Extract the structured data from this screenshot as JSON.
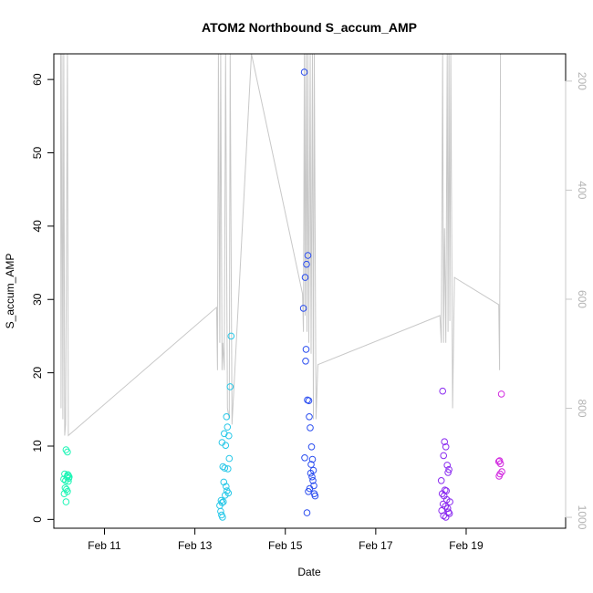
{
  "chart_data": {
    "type": "scatter",
    "title": "ATOM2 Northbound S_accum_AMP",
    "xlabel": "Date",
    "ylabel": "S_accum_AMP",
    "xlim": [
      9.88,
      21.2
    ],
    "ylim": [
      -1.2,
      63.5
    ],
    "x_ticks": [
      {
        "value": 11,
        "label": "Feb 11"
      },
      {
        "value": 13,
        "label": "Feb 13"
      },
      {
        "value": 15,
        "label": "Feb 15"
      },
      {
        "value": 17,
        "label": "Feb 17"
      },
      {
        "value": 19,
        "label": "Feb 19"
      }
    ],
    "y_ticks": [
      0,
      10,
      20,
      30,
      40,
      50,
      60
    ],
    "secondary_axis": {
      "label_color": "#b3b3b3",
      "line_color": "#c8c8c8",
      "ticks": [
        200,
        400,
        600,
        800,
        1000
      ],
      "range_top_to_bottom": [
        150,
        1020
      ],
      "note": "inverted depth-like scale on right"
    },
    "groups": [
      {
        "color": "#1ef5b6",
        "x": [
          10.15,
          10.18,
          10.12,
          10.2,
          10.22,
          10.1,
          10.14,
          10.17,
          10.19,
          10.21,
          10.13,
          10.16,
          10.11,
          10.18,
          10.2,
          10.15
        ],
        "y": [
          9.5,
          9.2,
          6.2,
          6.0,
          5.8,
          5.5,
          5.3,
          5.8,
          6.1,
          5.6,
          4.3,
          4.1,
          3.5,
          3.8,
          5.2,
          2.4
        ]
      },
      {
        "color": "#28c8e8",
        "x": [
          13.8,
          13.65,
          13.72,
          13.6,
          13.68,
          13.75,
          13.7,
          13.78,
          13.62,
          13.66,
          13.73,
          13.76,
          13.64,
          13.69,
          13.71,
          13.74,
          13.58,
          13.6,
          13.63,
          13.55,
          13.57,
          13.59,
          13.61,
          13.67
        ],
        "y": [
          25.0,
          11.7,
          12.6,
          10.5,
          10.1,
          11.4,
          14.0,
          18.1,
          7.2,
          7.0,
          6.9,
          8.3,
          5.1,
          4.5,
          3.9,
          3.6,
          2.6,
          2.3,
          2.4,
          1.9,
          1.1,
          0.6,
          0.3,
          3.3
        ]
      },
      {
        "color": "#2a4df0",
        "x": [
          15.42,
          15.5,
          15.47,
          15.44,
          15.4,
          15.46,
          15.45,
          15.49,
          15.52,
          15.53,
          15.55,
          15.58,
          15.6,
          15.57,
          15.62,
          15.56,
          15.59,
          15.61,
          15.63,
          15.54,
          15.51,
          15.43,
          15.48,
          15.64,
          15.66
        ],
        "y": [
          61.0,
          36.0,
          34.8,
          33.0,
          28.8,
          23.2,
          21.6,
          16.3,
          16.2,
          14.0,
          12.5,
          9.9,
          8.2,
          7.5,
          6.7,
          6.3,
          5.8,
          5.3,
          4.6,
          4.2,
          3.8,
          8.4,
          0.9,
          3.5,
          3.2
        ]
      },
      {
        "color": "#8a2af0",
        "x": [
          18.48,
          18.52,
          18.55,
          18.5,
          18.58,
          18.62,
          18.6,
          18.45,
          18.53,
          18.56,
          18.47,
          18.51,
          18.57,
          18.64,
          18.49,
          18.54,
          18.59,
          18.46,
          18.61,
          18.63,
          18.5,
          18.55
        ],
        "y": [
          17.5,
          10.6,
          9.9,
          8.7,
          7.4,
          6.8,
          6.4,
          5.3,
          4.0,
          3.9,
          3.5,
          3.2,
          2.7,
          2.4,
          2.1,
          1.8,
          1.5,
          1.2,
          1.0,
          0.8,
          0.5,
          0.3
        ]
      },
      {
        "color": "#d22ae0",
        "x": [
          19.78,
          19.74,
          19.76,
          19.72,
          19.79,
          19.75,
          19.73
        ],
        "y": [
          17.1,
          8.0,
          7.6,
          7.9,
          6.5,
          6.2,
          5.9
        ]
      }
    ],
    "series": [
      {
        "name": "secondary-trace",
        "color": "#c8c8c8",
        "points": [
          [
            10.03,
            150
          ],
          [
            10.04,
            800
          ],
          [
            10.06,
            150
          ],
          [
            10.08,
            820
          ],
          [
            10.1,
            150
          ],
          [
            10.12,
            850
          ],
          [
            10.14,
            830
          ],
          [
            10.18,
            150
          ],
          [
            10.2,
            850
          ],
          [
            13.48,
            615
          ],
          [
            13.5,
            730
          ],
          [
            13.52,
            150
          ],
          [
            13.55,
            680
          ],
          [
            13.57,
            150
          ],
          [
            13.6,
            730
          ],
          [
            13.62,
            680
          ],
          [
            13.65,
            730
          ],
          [
            13.68,
            150
          ],
          [
            13.72,
            800
          ],
          [
            13.76,
            820
          ],
          [
            13.78,
            150
          ],
          [
            13.82,
            830
          ],
          [
            14.25,
            150
          ],
          [
            15.38,
            590
          ],
          [
            15.4,
            660
          ],
          [
            15.42,
            150
          ],
          [
            15.44,
            630
          ],
          [
            15.46,
            150
          ],
          [
            15.48,
            660
          ],
          [
            15.5,
            150
          ],
          [
            15.52,
            680
          ],
          [
            15.55,
            150
          ],
          [
            15.57,
            700
          ],
          [
            15.6,
            150
          ],
          [
            15.62,
            820
          ],
          [
            15.64,
            150
          ],
          [
            15.68,
            820
          ],
          [
            15.72,
            720
          ],
          [
            18.42,
            630
          ],
          [
            18.45,
            680
          ],
          [
            18.48,
            150
          ],
          [
            18.5,
            680
          ],
          [
            18.52,
            470
          ],
          [
            18.55,
            680
          ],
          [
            18.58,
            150
          ],
          [
            18.6,
            660
          ],
          [
            18.62,
            150
          ],
          [
            18.64,
            640
          ],
          [
            18.66,
            150
          ],
          [
            18.7,
            800
          ],
          [
            18.74,
            560
          ],
          [
            19.72,
            610
          ],
          [
            19.74,
            730
          ],
          [
            19.76,
            150
          ]
        ]
      }
    ]
  }
}
